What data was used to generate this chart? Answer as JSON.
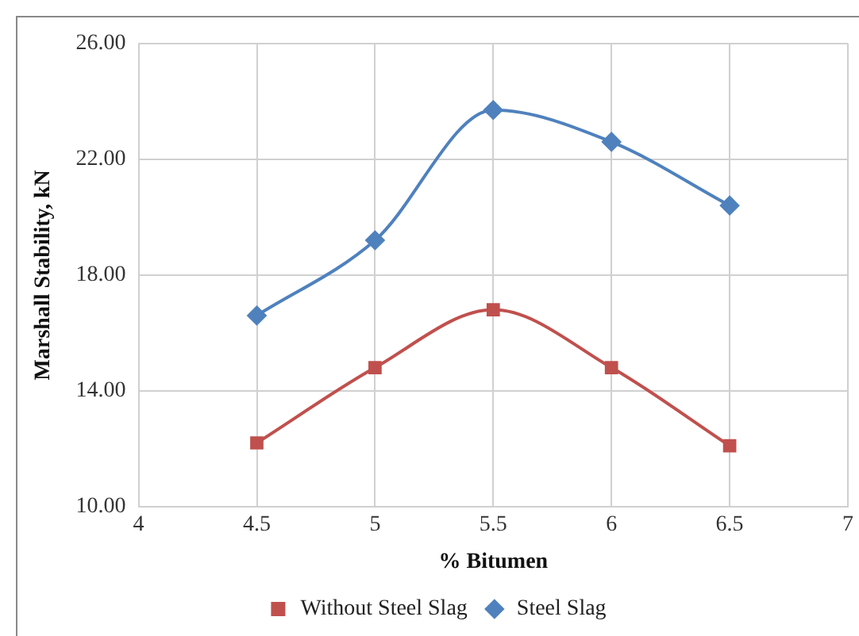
{
  "chart_data": {
    "type": "line",
    "xlabel": "% Bitumen",
    "ylabel": "Marshall Stability, kN",
    "x": [
      4.5,
      5,
      5.5,
      6,
      6.5
    ],
    "series": [
      {
        "name": "Without Steel Slag",
        "color": "#c0504d",
        "marker": "square",
        "values": [
          12.2,
          14.8,
          16.8,
          14.8,
          12.1
        ]
      },
      {
        "name": "Steel Slag",
        "color": "#4f81bd",
        "marker": "diamond",
        "values": [
          16.6,
          19.2,
          23.7,
          22.6,
          20.4
        ]
      }
    ],
    "xlim": [
      4,
      7
    ],
    "xticks": [
      4,
      4.5,
      5,
      5.5,
      6,
      6.5,
      7
    ],
    "ylim": [
      10,
      26
    ],
    "yticks": [
      {
        "value": 10,
        "label": "10.00"
      },
      {
        "value": 14,
        "label": "14.00"
      },
      {
        "value": 18,
        "label": "18.00"
      },
      {
        "value": 22,
        "label": "22.00"
      },
      {
        "value": 26,
        "label": "26.00"
      }
    ],
    "grid": true,
    "legend": "bottom"
  }
}
